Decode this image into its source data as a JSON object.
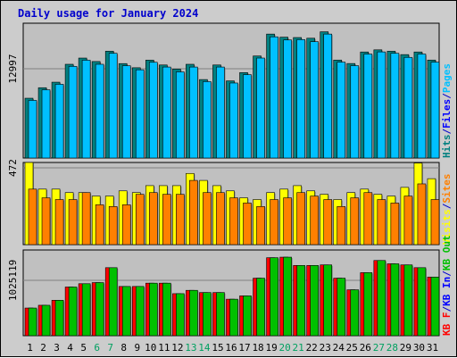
{
  "chart_data": {
    "type": "bar",
    "title": "Daily usage for January 2024",
    "categories": [
      "1",
      "2",
      "3",
      "4",
      "5",
      "6",
      "7",
      "8",
      "9",
      "10",
      "11",
      "12",
      "13",
      "14",
      "15",
      "16",
      "17",
      "18",
      "19",
      "20",
      "21",
      "22",
      "23",
      "24",
      "25",
      "26",
      "27",
      "28",
      "29",
      "30",
      "31"
    ],
    "weekend_days": [
      "6",
      "7",
      "13",
      "14",
      "20",
      "21",
      "27",
      "28"
    ],
    "panels": [
      {
        "name": "pages-files-hits",
        "y_tick_label": "12997",
        "ylim": [
          0,
          19500
        ],
        "axis_legend": [
          {
            "text": "Hits",
            "color": "#008080"
          },
          {
            "text": "/",
            "color": "#0000cc"
          },
          {
            "text": "Files",
            "color": "#0000ff"
          },
          {
            "text": "/",
            "color": "#0000cc"
          },
          {
            "text": "Pages",
            "color": "#00c0ff"
          }
        ],
        "series": [
          {
            "name": "Hits",
            "color": "#008080",
            "values": [
              8650,
              10170,
              10970,
              13560,
              14460,
              13960,
              15450,
              13660,
              13060,
              14160,
              13460,
              12860,
              13560,
              11350,
              13460,
              11160,
              12360,
              14760,
              17930,
              17480,
              17430,
              17330,
              18260,
              14170,
              13670,
              15340,
              15650,
              15450,
              14960,
              15340,
              14170
            ]
          },
          {
            "name": "Files",
            "color": "#00c0ff",
            "values": [
              8340,
              9870,
              10670,
              13260,
              14150,
              13560,
              15150,
              13350,
              12760,
              13850,
              13160,
              12460,
              13160,
              11050,
              13160,
              10850,
              12060,
              14460,
              17530,
              17080,
              17130,
              16830,
              17930,
              13870,
              13360,
              15040,
              15350,
              15150,
              14560,
              15040,
              13870
            ]
          }
        ]
      },
      {
        "name": "visits-sites",
        "y_tick_label": "472",
        "ylim": [
          0,
          472
        ],
        "axis_legend": [
          {
            "text": "Visits",
            "color": "#ffff00"
          },
          {
            "text": "/",
            "color": "#0000cc"
          },
          {
            "text": "Sites",
            "color": "#ff8000"
          }
        ],
        "series": [
          {
            "name": "Visits",
            "color": "#ffff00",
            "values": [
              475,
              319,
              319,
              299,
              299,
              279,
              279,
              309,
              299,
              339,
              339,
              339,
              409,
              369,
              339,
              309,
              269,
              259,
              299,
              319,
              339,
              309,
              289,
              259,
              299,
              319,
              289,
              279,
              329,
              469,
              379
            ]
          },
          {
            "name": "Sites",
            "color": "#ff8000",
            "values": [
              319,
              269,
              259,
              259,
              299,
              229,
              219,
              229,
              289,
              299,
              289,
              289,
              369,
              299,
              299,
              269,
              239,
              219,
              259,
              269,
              299,
              279,
              259,
              219,
              269,
              299,
              259,
              239,
              279,
              349,
              259
            ]
          }
        ]
      },
      {
        "name": "kbytes",
        "y_tick_label": "1025119",
        "ylim": [
          0,
          1550000
        ],
        "axis_legend": [
          {
            "text": "KB F",
            "color": "#ff0000"
          },
          {
            "text": "/",
            "color": "#0000cc"
          },
          {
            "text": "KB In",
            "color": "#0000ff"
          },
          {
            "text": "/",
            "color": "#0000cc"
          },
          {
            "text": "KB Out",
            "color": "#00c000"
          }
        ],
        "series": [
          {
            "name": "KB F",
            "color": "#ff0000",
            "values": [
              500000,
              550000,
              640000,
              880000,
              940000,
              960000,
              1230000,
              890000,
              890000,
              950000,
              950000,
              760000,
              820000,
              780000,
              780000,
              660000,
              720000,
              1040000,
              1410000,
              1420000,
              1270000,
              1270000,
              1280000,
              1040000,
              830000,
              1140000,
              1360000,
              1300000,
              1280000,
              1230000,
              1060000
            ]
          },
          {
            "name": "KB Out",
            "color": "#00c000",
            "values": [
              500000,
              550000,
              640000,
              880000,
              940000,
              960000,
              1230000,
              890000,
              890000,
              950000,
              950000,
              760000,
              820000,
              780000,
              780000,
              660000,
              720000,
              1040000,
              1410000,
              1420000,
              1270000,
              1270000,
              1280000,
              1040000,
              830000,
              1140000,
              1360000,
              1300000,
              1280000,
              1230000,
              1060000
            ]
          }
        ]
      }
    ]
  }
}
